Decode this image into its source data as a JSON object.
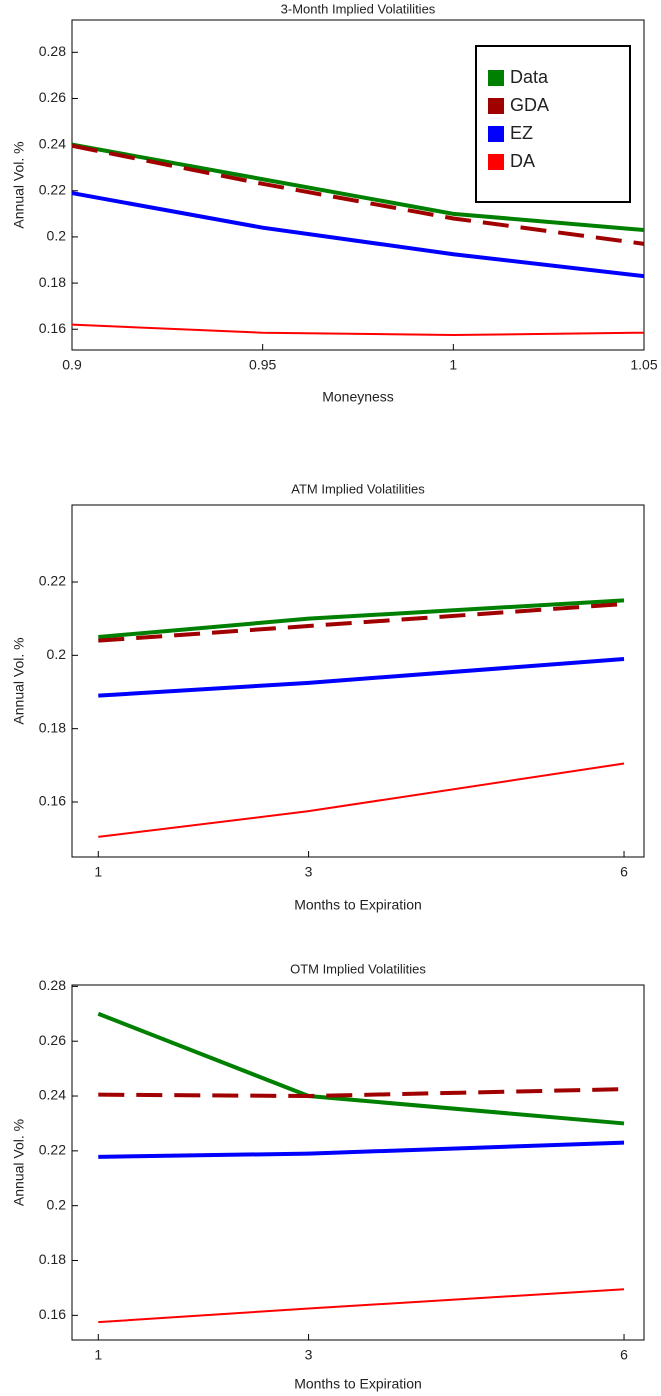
{
  "chart_data": [
    {
      "type": "line",
      "title": "3-Month Implied Volatilities",
      "x_label": "Moneyness",
      "y_label": "Annual Vol. %",
      "x": [
        0.9,
        0.95,
        1,
        1.05
      ],
      "xlim": [
        0.9,
        1.05
      ],
      "xticks": [
        0.9,
        0.95,
        1,
        1.05
      ],
      "ylim": [
        0.151,
        0.294
      ],
      "yticks": [
        0.16,
        0.18,
        0.2,
        0.22,
        0.24,
        0.26,
        0.28
      ],
      "legend": "top-right",
      "series": [
        {
          "name": "Data",
          "color": "#008000",
          "width": 4,
          "dashed": false,
          "values": [
            0.24,
            0.225,
            0.21,
            0.203
          ]
        },
        {
          "name": "GDA",
          "color": "#a00000",
          "width": 4,
          "dashed": true,
          "values": [
            0.2395,
            0.223,
            0.208,
            0.197
          ]
        },
        {
          "name": "EZ",
          "color": "#0000ff",
          "width": 4,
          "dashed": false,
          "values": [
            0.219,
            0.204,
            0.1925,
            0.183
          ]
        },
        {
          "name": "DA",
          "color": "#ff0000",
          "width": 2,
          "dashed": false,
          "values": [
            0.162,
            0.1585,
            0.1575,
            0.1585
          ]
        }
      ]
    },
    {
      "type": "line",
      "title": "ATM Implied Volatilities",
      "x_label": "Months to Expiration",
      "y_label": "Annual Vol. %",
      "x": [
        1,
        3,
        6
      ],
      "xlim": [
        0.75,
        6.19
      ],
      "xticks": [
        1,
        3,
        6
      ],
      "ylim": [
        0.145,
        0.241
      ],
      "yticks": [
        0.16,
        0.18,
        0.2,
        0.22
      ],
      "series": [
        {
          "color": "#008000",
          "width": 4,
          "dashed": false,
          "values": [
            0.205,
            0.21,
            0.215
          ]
        },
        {
          "color": "#a00000",
          "width": 4,
          "dashed": true,
          "values": [
            0.204,
            0.208,
            0.214
          ]
        },
        {
          "color": "#0000ff",
          "width": 4,
          "dashed": false,
          "values": [
            0.189,
            0.1925,
            0.199
          ]
        },
        {
          "color": "#ff0000",
          "width": 2,
          "dashed": false,
          "values": [
            0.1505,
            0.1575,
            0.1705
          ]
        }
      ]
    },
    {
      "type": "line",
      "title": "OTM Implied Volatilities",
      "x_label": "Months to Expiration",
      "y_label": "Annual Vol. %",
      "x": [
        1,
        3,
        6
      ],
      "xlim": [
        0.75,
        6.19
      ],
      "xticks": [
        1,
        3,
        6
      ],
      "ylim": [
        0.151,
        0.2805
      ],
      "yticks": [
        0.16,
        0.18,
        0.2,
        0.22,
        0.24,
        0.26,
        0.28
      ],
      "series": [
        {
          "color": "#008000",
          "width": 4,
          "dashed": false,
          "values": [
            0.27,
            0.24,
            0.23
          ]
        },
        {
          "color": "#a00000",
          "width": 4,
          "dashed": true,
          "values": [
            0.2405,
            0.24,
            0.2425
          ]
        },
        {
          "color": "#0000ff",
          "width": 4,
          "dashed": false,
          "values": [
            0.2178,
            0.219,
            0.223
          ]
        },
        {
          "color": "#ff0000",
          "width": 2,
          "dashed": false,
          "values": [
            0.1575,
            0.1625,
            0.1695
          ]
        }
      ]
    }
  ]
}
